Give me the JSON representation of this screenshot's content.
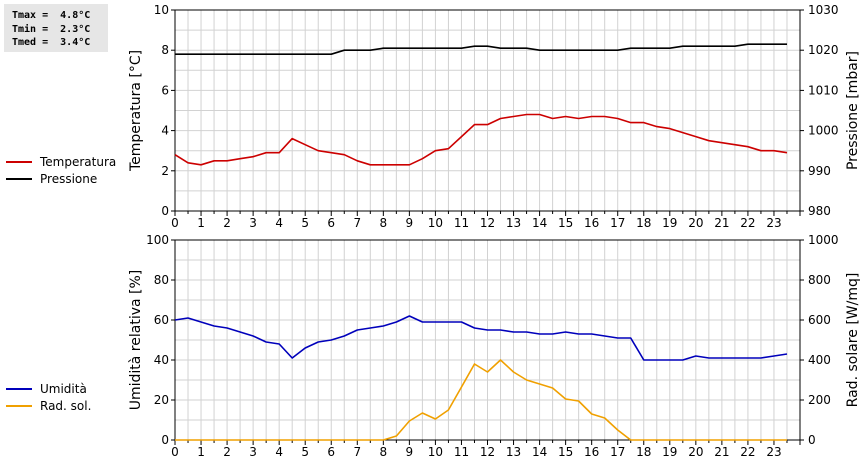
{
  "stats": {
    "tmax": "Tmax =  4.8°C",
    "tmin": "Tmin =  2.3°C",
    "tmed": "Tmed =  3.4°C"
  },
  "legend_top": [
    {
      "label": "Temperatura",
      "color": "#cc0000"
    },
    {
      "label": "Pressione",
      "color": "#000000"
    }
  ],
  "legend_bottom": [
    {
      "label": "Umidità",
      "color": "#0000bb"
    },
    {
      "label": "Rad. sol.",
      "color": "#f0a000"
    }
  ],
  "chart_data": [
    {
      "type": "line",
      "x_ticks": [
        0,
        1,
        2,
        3,
        4,
        5,
        6,
        7,
        8,
        9,
        10,
        11,
        12,
        13,
        14,
        15,
        16,
        17,
        18,
        19,
        20,
        21,
        22,
        23
      ],
      "xlim": [
        0,
        24
      ],
      "ylabel": "Temperatura [°C]",
      "ylim": [
        0,
        10
      ],
      "y_ticks": [
        0,
        2,
        4,
        6,
        8,
        10
      ],
      "y2label": "Pressione [mbar]",
      "y2lim": [
        980,
        1030
      ],
      "y2_ticks": [
        980,
        990,
        1000,
        1010,
        1020,
        1030
      ],
      "grid": true,
      "series": [
        {
          "name": "Temperatura",
          "axis": "left",
          "color": "#cc0000",
          "x": [
            0,
            0.5,
            1,
            1.5,
            2,
            2.5,
            3,
            3.5,
            4,
            4.5,
            5,
            5.5,
            6,
            6.5,
            7,
            7.5,
            8,
            8.5,
            9,
            9.5,
            10,
            10.5,
            11,
            11.5,
            12,
            12.5,
            13,
            13.5,
            14,
            14.5,
            15,
            15.5,
            16,
            16.5,
            17,
            17.5,
            18,
            18.5,
            19,
            19.5,
            20,
            20.5,
            21,
            21.5,
            22,
            22.5,
            23,
            23.5
          ],
          "y": [
            2.8,
            2.4,
            2.3,
            2.5,
            2.5,
            2.6,
            2.7,
            2.9,
            2.9,
            3.6,
            3.3,
            3.0,
            2.9,
            2.8,
            2.5,
            2.3,
            2.3,
            2.3,
            2.3,
            2.6,
            3.0,
            3.1,
            3.7,
            4.3,
            4.3,
            4.6,
            4.7,
            4.8,
            4.8,
            4.6,
            4.7,
            4.6,
            4.7,
            4.7,
            4.6,
            4.4,
            4.4,
            4.2,
            4.1,
            3.9,
            3.7,
            3.5,
            3.4,
            3.3,
            3.2,
            3.0,
            3.0,
            2.9
          ]
        },
        {
          "name": "Pressione",
          "axis": "right",
          "color": "#000000",
          "x": [
            0,
            6,
            6.5,
            7.5,
            8,
            11,
            11.5,
            12,
            12.5,
            13.5,
            14,
            17,
            17.5,
            19,
            19.5,
            21.5,
            22,
            23.5
          ],
          "y": [
            1019,
            1019,
            1020,
            1020,
            1020.5,
            1020.5,
            1021,
            1021,
            1020.5,
            1020.5,
            1020,
            1020,
            1020.5,
            1020.5,
            1021,
            1021,
            1021.5,
            1021.5
          ]
        }
      ]
    },
    {
      "type": "line",
      "x_ticks": [
        0,
        1,
        2,
        3,
        4,
        5,
        6,
        7,
        8,
        9,
        10,
        11,
        12,
        13,
        14,
        15,
        16,
        17,
        18,
        19,
        20,
        21,
        22,
        23
      ],
      "xlim": [
        0,
        24
      ],
      "ylabel": "Umidità relativa [%]",
      "ylim": [
        0,
        100
      ],
      "y_ticks": [
        0,
        20,
        40,
        60,
        80,
        100
      ],
      "y2label": "Rad. solare [W/mq]",
      "y2lim": [
        0,
        1000
      ],
      "y2_ticks": [
        0,
        200,
        400,
        600,
        800,
        1000
      ],
      "grid": true,
      "series": [
        {
          "name": "Umidità",
          "axis": "left",
          "color": "#0000bb",
          "x": [
            0,
            0.5,
            1,
            1.5,
            2,
            2.5,
            3,
            3.5,
            4,
            4.5,
            5,
            5.5,
            6,
            6.5,
            7,
            7.5,
            8,
            8.5,
            9,
            9.5,
            10,
            10.5,
            11,
            11.5,
            12,
            12.5,
            13,
            13.5,
            14,
            14.5,
            15,
            15.5,
            16,
            16.5,
            17,
            17.5,
            18,
            18.5,
            19,
            19.5,
            20,
            20.5,
            21,
            21.5,
            22,
            22.5,
            23,
            23.5
          ],
          "y": [
            60,
            61,
            59,
            57,
            56,
            54,
            52,
            49,
            48,
            41,
            46,
            49,
            50,
            52,
            55,
            56,
            57,
            59,
            62,
            59,
            59,
            59,
            59,
            56,
            55,
            55,
            54,
            54,
            53,
            53,
            54,
            53,
            53,
            52,
            51,
            51,
            40,
            40,
            40,
            40,
            42,
            41,
            41,
            41,
            41,
            41,
            42,
            43
          ]
        },
        {
          "name": "Rad. sol.",
          "axis": "right",
          "color": "#f0a000",
          "x": [
            0,
            0.5,
            1,
            1.5,
            2,
            2.5,
            3,
            3.5,
            4,
            4.5,
            5,
            5.5,
            6,
            6.5,
            7,
            7.5,
            8,
            8.5,
            9,
            9.5,
            10,
            10.5,
            11,
            11.5,
            12,
            12.5,
            13,
            13.5,
            14,
            14.5,
            15,
            15.5,
            16,
            16.5,
            17,
            17.5,
            18,
            18.5,
            19,
            19.5,
            20,
            20.5,
            21,
            21.5,
            22,
            22.5,
            23,
            23.5
          ],
          "y": [
            0,
            0,
            0,
            0,
            0,
            0,
            0,
            0,
            0,
            0,
            0,
            0,
            0,
            0,
            0,
            0,
            0,
            20,
            95,
            135,
            105,
            150,
            265,
            380,
            340,
            400,
            340,
            300,
            280,
            260,
            205,
            195,
            130,
            110,
            50,
            0,
            0,
            0,
            0,
            0,
            0,
            0,
            0,
            0,
            0,
            0,
            0,
            0
          ]
        }
      ]
    }
  ]
}
